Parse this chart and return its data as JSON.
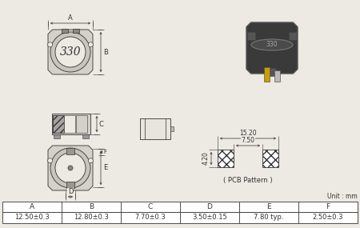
{
  "bg_color": "#ede9e3",
  "lc": "#333333",
  "table_headers": [
    "A",
    "B",
    "C",
    "D",
    "E",
    "F"
  ],
  "table_values": [
    "12.50±0.3",
    "12.80±0.3",
    "7.70±0.3",
    "3.50±0.15",
    "7.80 typ.",
    "2.50±0.3"
  ],
  "pcb_label": "( PCB Pattern )",
  "unit_label": "Unit : mm",
  "dim_15_20": "15.20",
  "dim_7_50": "7.50",
  "dim_4_20": "4.20"
}
